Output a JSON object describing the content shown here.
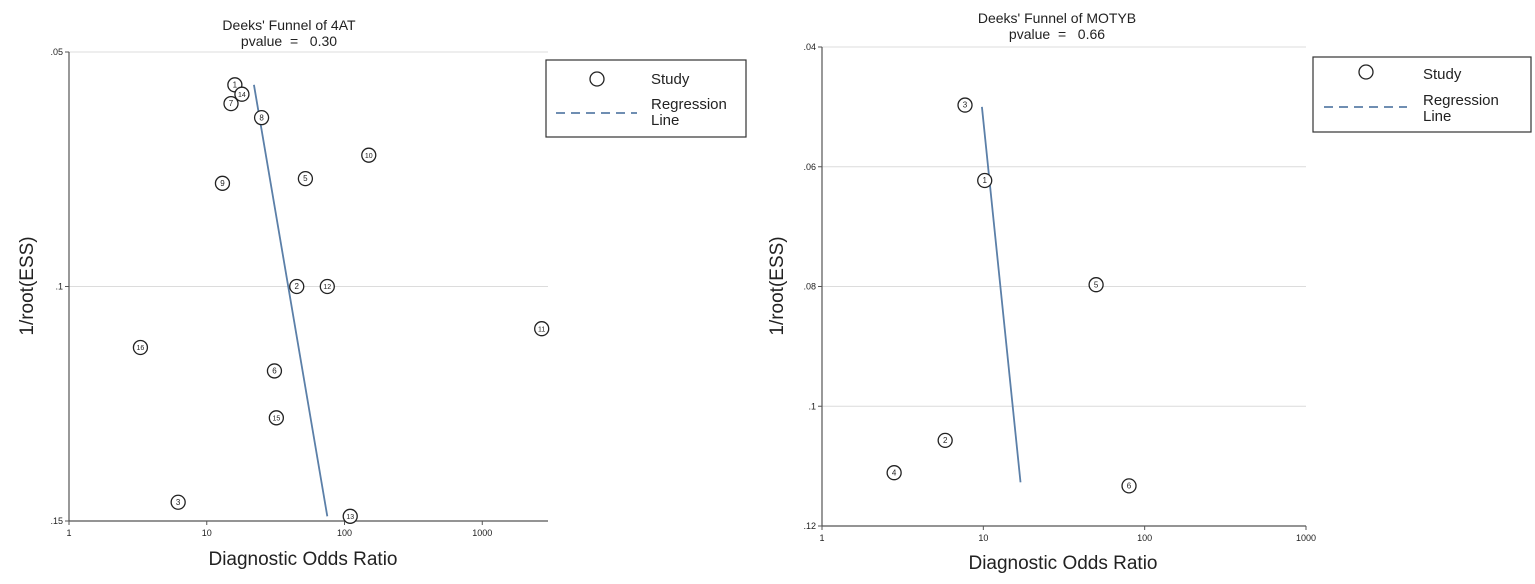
{
  "chart_data": [
    {
      "type": "scatter",
      "title": "Deeks' Funnel of 4AT",
      "subtitle": "pvalue  =   0.30",
      "xlabel": "Diagnostic Odds Ratio",
      "ylabel": "1/root(ESS)",
      "x_scale": "log",
      "xlim": [
        1,
        3000
      ],
      "ylim": [
        0.15,
        0.05
      ],
      "y_reversed": true,
      "x_ticks": [
        1,
        10,
        100,
        1000
      ],
      "x_tick_labels": [
        "1",
        "10",
        "100",
        "1000"
      ],
      "y_ticks": [
        0.05,
        0.1,
        0.15
      ],
      "y_tick_labels": [
        ".05",
        ".1",
        ".15"
      ],
      "grid": "horizontal",
      "legend": {
        "position": "right",
        "entries": [
          "Study",
          "Regression Line"
        ]
      },
      "points": [
        {
          "label": "1",
          "x": 16,
          "y": 0.057
        },
        {
          "label": "14",
          "x": 18,
          "y": 0.059
        },
        {
          "label": "7",
          "x": 15,
          "y": 0.061
        },
        {
          "label": "8",
          "x": 25,
          "y": 0.064
        },
        {
          "label": "10",
          "x": 150,
          "y": 0.072
        },
        {
          "label": "9",
          "x": 13,
          "y": 0.078
        },
        {
          "label": "5",
          "x": 52,
          "y": 0.077
        },
        {
          "label": "2",
          "x": 45,
          "y": 0.1
        },
        {
          "label": "12",
          "x": 75,
          "y": 0.1
        },
        {
          "label": "11",
          "x": 2700,
          "y": 0.109
        },
        {
          "label": "16",
          "x": 3.3,
          "y": 0.113
        },
        {
          "label": "6",
          "x": 31,
          "y": 0.118
        },
        {
          "label": "15",
          "x": 32,
          "y": 0.128
        },
        {
          "label": "3",
          "x": 6.2,
          "y": 0.146
        },
        {
          "label": "13",
          "x": 110,
          "y": 0.149
        }
      ],
      "regression_line": [
        {
          "x": 22,
          "y": 0.057
        },
        {
          "x": 75,
          "y": 0.149
        }
      ],
      "colors": {
        "regression": "#5b7fa8",
        "grid": "#dcdcdc",
        "marker": "#222222"
      }
    },
    {
      "type": "scatter",
      "title": "Deeks' Funnel of MOTYB",
      "subtitle": "pvalue  =   0.66",
      "xlabel": "Diagnostic Odds Ratio",
      "ylabel": "1/root(ESS)",
      "x_scale": "log",
      "xlim": [
        1,
        1000
      ],
      "ylim": [
        0.12,
        0.04
      ],
      "y_reversed": true,
      "x_ticks": [
        1,
        10,
        100,
        1000
      ],
      "x_tick_labels": [
        "1",
        "10",
        "100",
        "1000"
      ],
      "y_ticks": [
        0.04,
        0.06,
        0.08,
        0.1,
        0.12
      ],
      "y_tick_labels": [
        ".04",
        ".06",
        ".08",
        ".1",
        ".12"
      ],
      "grid": "horizontal",
      "legend": {
        "position": "right",
        "entries": [
          "Study",
          "Regression Line"
        ]
      },
      "points": [
        {
          "label": "3",
          "x": 7.7,
          "y": 0.0497
        },
        {
          "label": "1",
          "x": 10.2,
          "y": 0.0623
        },
        {
          "label": "5",
          "x": 50,
          "y": 0.0797
        },
        {
          "label": "2",
          "x": 5.8,
          "y": 0.1057
        },
        {
          "label": "4",
          "x": 2.8,
          "y": 0.1111
        },
        {
          "label": "6",
          "x": 80,
          "y": 0.1133
        }
      ],
      "regression_line": [
        {
          "x": 9.8,
          "y": 0.05
        },
        {
          "x": 17,
          "y": 0.1127
        }
      ],
      "colors": {
        "regression": "#5b7fa8",
        "grid": "#dcdcdc",
        "marker": "#222222"
      }
    }
  ]
}
